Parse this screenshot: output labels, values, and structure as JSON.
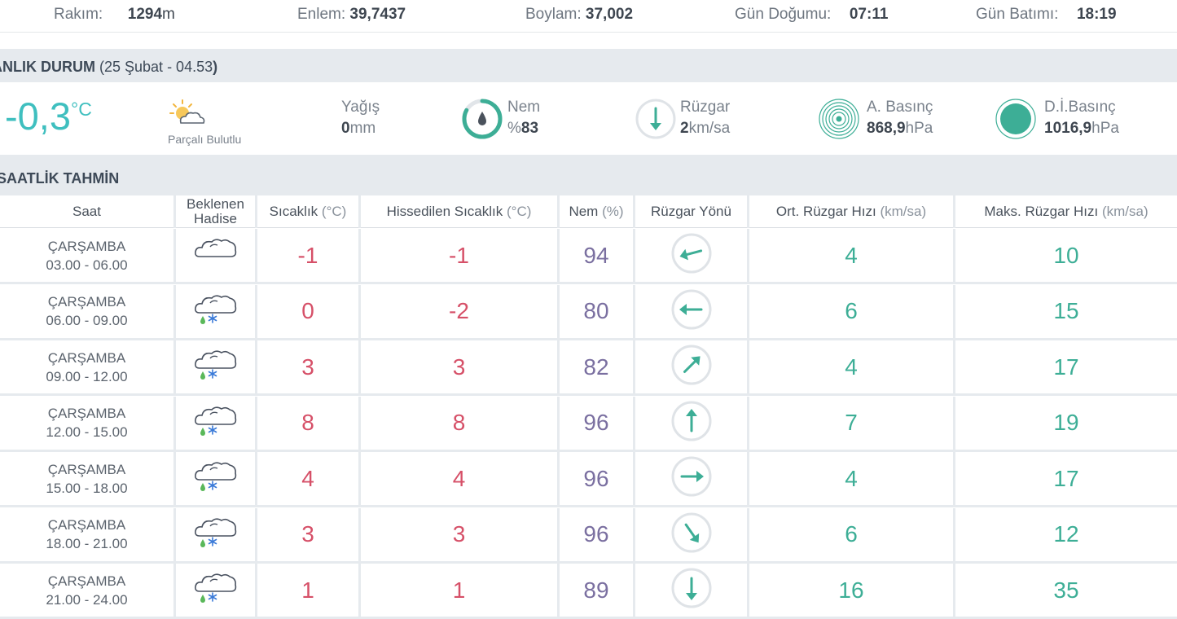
{
  "topbar": {
    "altitude": {
      "label": "Rakım:",
      "value": "1294",
      "unit": "m"
    },
    "latitude": {
      "label": "Enlem:",
      "value": "39,7437"
    },
    "longitude": {
      "label": "Boylam:",
      "value": "37,002"
    },
    "sunrise": {
      "label": "Gün Doğumu:",
      "value": "07:11"
    },
    "sunset": {
      "label": "Gün Batımı:",
      "value": "18:19"
    }
  },
  "current": {
    "title": "ANLIK DURUM",
    "paren_open": "(",
    "datetime": "25 Şubat - 04.53",
    "paren_close": ")",
    "temperature": "-0,3",
    "temp_unit": "°C",
    "condition": "Parçalı Bulutlu",
    "condition_icon": "partly-cloudy-icon",
    "precip": {
      "label": "Yağış",
      "value": "0",
      "unit": "mm"
    },
    "humidity": {
      "label": "Nem",
      "prefix": "%",
      "value": "83",
      "level": 0.83
    },
    "wind": {
      "label": "Rüzgar",
      "value": "2",
      "unit": "km/sa"
    },
    "pressure_actual": {
      "label": "A. Basınç",
      "value": "868,9",
      "unit": "hPa"
    },
    "pressure_sea": {
      "label": "D.İ.Basınç",
      "value": "1016,9",
      "unit": "hPa"
    }
  },
  "hourly": {
    "title": "SAATLİK TAHMİN",
    "headers": {
      "time": "Saat",
      "event_line1": "Beklenen",
      "event_line2": "Hadise",
      "temp": "Sıcaklık",
      "temp_unit": "(°C)",
      "feels": "Hissedilen Sıcaklık",
      "feels_unit": "(°C)",
      "humidity": "Nem",
      "humidity_unit": "(%)",
      "wind_dir": "Rüzgar Yönü",
      "avg_wind": "Ort. Rüzgar Hızı",
      "avg_wind_unit": "(km/sa)",
      "max_wind": "Maks. Rüzgar Hızı",
      "max_wind_unit": "(km/sa)"
    },
    "rows": [
      {
        "day": "ÇARŞAMBA",
        "range": "03.00 - 06.00",
        "icon": "cloudy-icon",
        "temp": "-1",
        "feels": "-1",
        "humidity": "94",
        "wind_dir_deg": 255,
        "avg": "4",
        "max": "10"
      },
      {
        "day": "ÇARŞAMBA",
        "range": "06.00 - 09.00",
        "icon": "sleet-icon",
        "temp": "0",
        "feels": "-2",
        "humidity": "80",
        "wind_dir_deg": 270,
        "avg": "6",
        "max": "15"
      },
      {
        "day": "ÇARŞAMBA",
        "range": "09.00 - 12.00",
        "icon": "sleet-icon",
        "temp": "3",
        "feels": "3",
        "humidity": "82",
        "wind_dir_deg": 45,
        "avg": "4",
        "max": "17"
      },
      {
        "day": "ÇARŞAMBA",
        "range": "12.00 - 15.00",
        "icon": "sleet-icon",
        "temp": "8",
        "feels": "8",
        "humidity": "96",
        "wind_dir_deg": 0,
        "avg": "7",
        "max": "19"
      },
      {
        "day": "ÇARŞAMBA",
        "range": "15.00 - 18.00",
        "icon": "sleet-icon",
        "temp": "4",
        "feels": "4",
        "humidity": "96",
        "wind_dir_deg": 90,
        "avg": "4",
        "max": "17"
      },
      {
        "day": "ÇARŞAMBA",
        "range": "18.00 - 21.00",
        "icon": "sleet-icon",
        "temp": "3",
        "feels": "3",
        "humidity": "96",
        "wind_dir_deg": 145,
        "avg": "6",
        "max": "12"
      },
      {
        "day": "ÇARŞAMBA",
        "range": "21.00 - 24.00",
        "icon": "sleet-icon",
        "temp": "1",
        "feels": "1",
        "humidity": "89",
        "wind_dir_deg": 180,
        "avg": "16",
        "max": "35"
      }
    ]
  },
  "colors": {
    "accent": "#3fbfbf",
    "teal": "#3dae96",
    "temp_red": "#d65068",
    "humidity_purple": "#7a6fa0",
    "bar_gray": "#e6eaee"
  }
}
